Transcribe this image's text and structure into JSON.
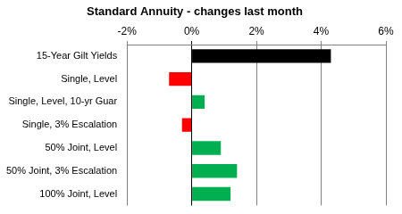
{
  "chart_data": {
    "type": "bar",
    "title": "Standard Annuity - changes last month",
    "orientation": "horizontal",
    "categories": [
      "15-Year Gilt Yields",
      "Single, Level",
      "Single, Level, 10-yr Guar",
      "Single, 3% Escalation",
      "50% Joint, Level",
      "50% Joint, 3% Escalation",
      "100% Joint, Level"
    ],
    "values": [
      4.3,
      -0.7,
      0.4,
      -0.3,
      0.9,
      1.4,
      1.2
    ],
    "colors": [
      "#000000",
      "#ff0000",
      "#00b050",
      "#ff0000",
      "#00b050",
      "#00b050",
      "#00b050"
    ],
    "xlim": [
      -2,
      6
    ],
    "xticks": [
      {
        "value": -2,
        "label": "-2%"
      },
      {
        "value": 0,
        "label": "0%"
      },
      {
        "value": 2,
        "label": "2%"
      },
      {
        "value": 4,
        "label": "4%"
      },
      {
        "value": 6,
        "label": "6%"
      }
    ],
    "grid": true
  }
}
